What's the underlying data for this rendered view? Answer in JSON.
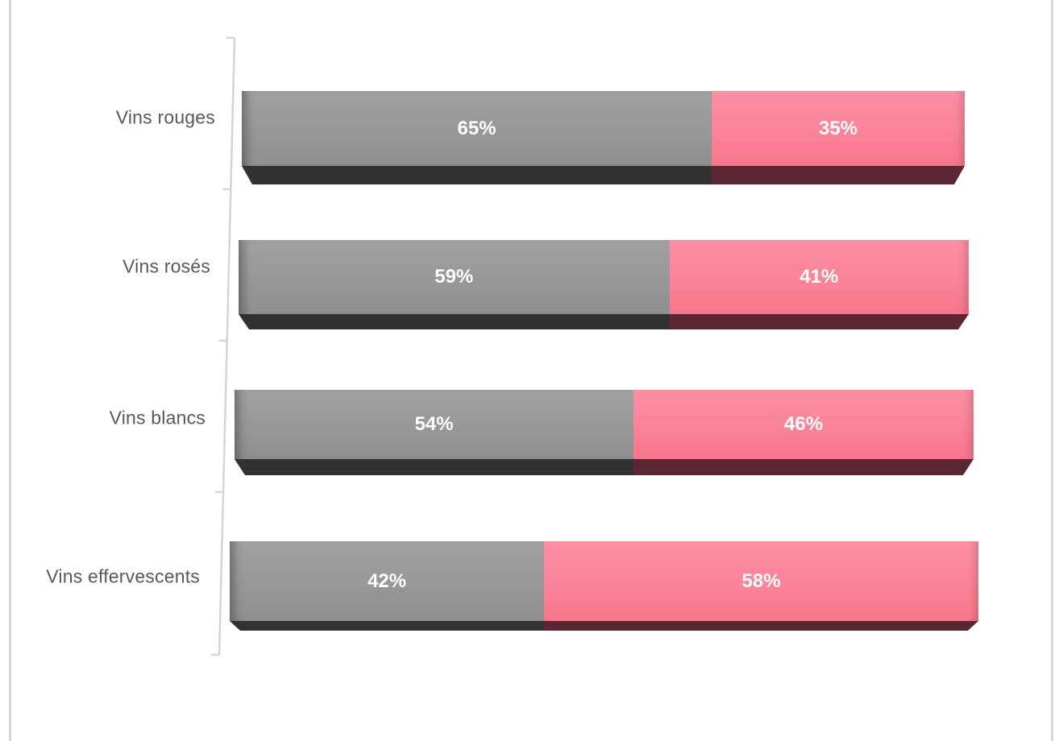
{
  "page": {
    "background": "#ffffff",
    "frame_border_color": "#d6d6d6"
  },
  "chart_data": {
    "type": "bar",
    "orientation": "horizontal",
    "stacked": true,
    "percent_stacked": true,
    "effect_3d": true,
    "title": "",
    "xlabel": "",
    "ylabel": "",
    "xlim": [
      0,
      100
    ],
    "legend": "none",
    "grid": "off",
    "categories": [
      "Vins rouges",
      "Vins rosés",
      "Vins blancs",
      "Vins effervescents"
    ],
    "series": [
      {
        "name": "gris",
        "color": "#969696",
        "values": [
          65,
          59,
          54,
          42
        ]
      },
      {
        "name": "rose",
        "color": "#f87f95",
        "values": [
          35,
          41,
          46,
          58
        ]
      }
    ],
    "data_labels": [
      [
        "65%",
        "35%"
      ],
      [
        "59%",
        "41%"
      ],
      [
        "54%",
        "46%"
      ],
      [
        "42%",
        "58%"
      ]
    ],
    "colors": {
      "segment_gris": "#969696",
      "segment_rose": "#f87f95",
      "bevel_gris": "#323232",
      "bevel_rose": "#5b2733",
      "value_label": "#ffffff",
      "category_label": "#595959",
      "axis_line": "#d4d4d4"
    }
  }
}
